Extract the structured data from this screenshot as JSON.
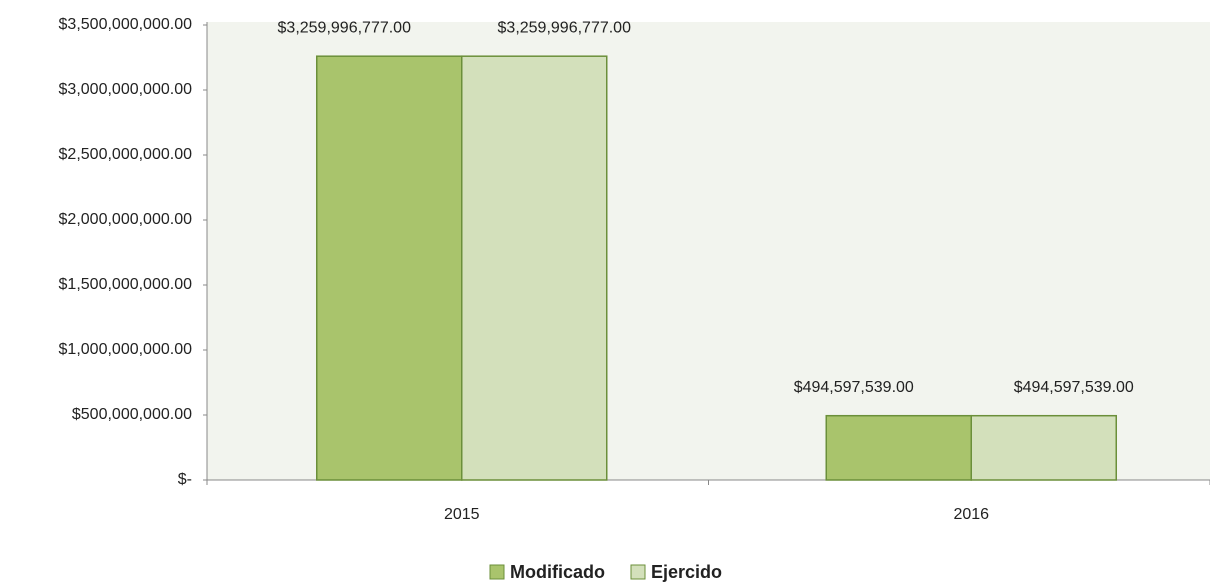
{
  "chart_data": {
    "type": "bar",
    "categories": [
      "2015",
      "2016"
    ],
    "series": [
      {
        "name": "Modificado",
        "color": "#a9c46c",
        "values": [
          3259996777,
          494597539
        ],
        "value_labels": [
          "$3,259,996,777.00",
          "$494,597,539.00"
        ]
      },
      {
        "name": "Ejercido",
        "color": "#d3e0bb",
        "values": [
          3259996777,
          494597539
        ],
        "value_labels": [
          "$3,259,996,777.00",
          "$494,597,539.00"
        ]
      }
    ],
    "ylim": [
      0,
      3500000000
    ],
    "yticks": [
      {
        "value": 0,
        "label": "$-"
      },
      {
        "value": 500000000,
        "label": "$500,000,000.00"
      },
      {
        "value": 1000000000,
        "label": "$1,000,000,000.00"
      },
      {
        "value": 1500000000,
        "label": "$1,500,000,000.00"
      },
      {
        "value": 2000000000,
        "label": "$2,000,000,000.00"
      },
      {
        "value": 2500000000,
        "label": "$2,500,000,000.00"
      },
      {
        "value": 3000000000,
        "label": "$3,000,000,000.00"
      },
      {
        "value": 3500000000,
        "label": "$3,500,000,000.00"
      }
    ],
    "legend": "bottom"
  }
}
